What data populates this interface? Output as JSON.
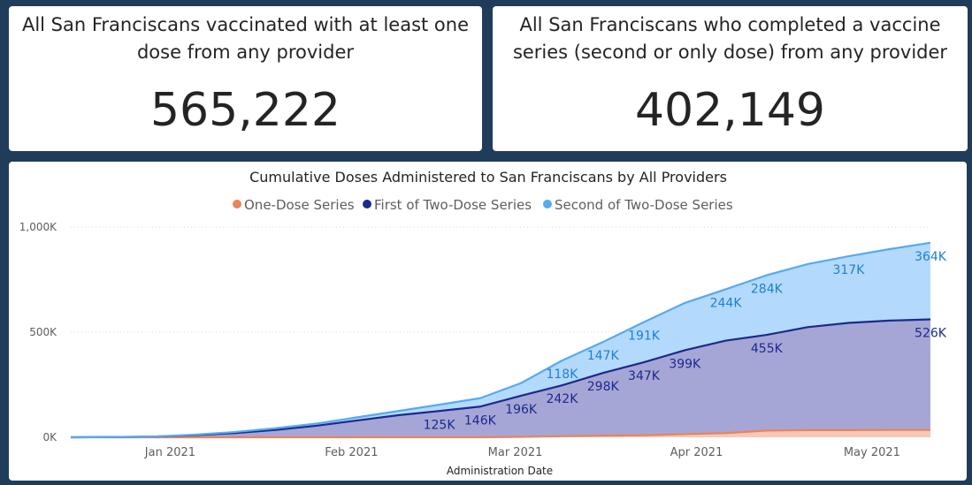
{
  "kpis": [
    {
      "title": "All San Franciscans vaccinated with at least one dose from any provider",
      "value": "565,222"
    },
    {
      "title": "All San Franciscans who completed a vaccine series (second or only dose) from any provider",
      "value": "402,149"
    }
  ],
  "colors": {
    "one_dose": "#e8855a",
    "first_of_two": "#1b2a8c",
    "second_of_two": "#56aaf0",
    "one_dose_fill": "#f7c8b6",
    "first_of_two_fill": "#a6a6d6",
    "second_of_two_fill": "#b3dafd"
  },
  "chart_data": {
    "type": "area",
    "stacked": true,
    "title": "Cumulative Doses Administered to San Franciscans by All Providers",
    "xlabel": "Administration Date",
    "ylabel": "",
    "x_ticks": [
      "Jan 2021",
      "Feb 2021",
      "Mar 2021",
      "Apr 2021",
      "May 2021"
    ],
    "y_ticks": [
      "0K",
      "500K",
      "1,000K"
    ],
    "ylim": [
      0,
      1000000
    ],
    "legend_position": "top-center",
    "grid": true,
    "x": [
      "2020-12-15",
      "2020-12-22",
      "2020-12-29",
      "2021-01-05",
      "2021-01-12",
      "2021-01-19",
      "2021-01-26",
      "2021-02-02",
      "2021-02-09",
      "2021-02-16",
      "2021-02-23",
      "2021-03-02",
      "2021-03-09",
      "2021-03-16",
      "2021-03-23",
      "2021-03-30",
      "2021-04-06",
      "2021-04-13",
      "2021-04-20",
      "2021-04-27",
      "2021-05-04",
      "2021-05-11"
    ],
    "series": [
      {
        "name": "One-Dose Series",
        "key": "one_dose",
        "values": [
          0,
          0,
          0,
          0,
          0,
          0,
          0,
          0,
          0,
          0,
          0,
          2000,
          5000,
          8000,
          10000,
          15000,
          20000,
          32000,
          34000,
          34000,
          35000,
          35000
        ],
        "labels": []
      },
      {
        "name": "First of Two-Dose Series",
        "key": "first_of_two",
        "values": [
          0,
          1000,
          3000,
          10000,
          20000,
          35000,
          55000,
          80000,
          105000,
          125000,
          146000,
          196000,
          242000,
          298000,
          347000,
          399000,
          440000,
          455000,
          490000,
          510000,
          520000,
          526000
        ],
        "labels": [
          {
            "i": 9,
            "text": "125K"
          },
          {
            "i": 10,
            "text": "146K"
          },
          {
            "i": 11,
            "text": "196K"
          },
          {
            "i": 12,
            "text": "242K"
          },
          {
            "i": 13,
            "text": "298K"
          },
          {
            "i": 14,
            "text": "347K"
          },
          {
            "i": 15,
            "text": "399K"
          },
          {
            "i": 17,
            "text": "455K"
          },
          {
            "i": 21,
            "text": "526K"
          }
        ]
      },
      {
        "name": "Second of Two-Dose Series",
        "key": "second_of_two",
        "values": [
          0,
          0,
          0,
          2000,
          5000,
          8000,
          10000,
          15000,
          20000,
          30000,
          40000,
          60000,
          118000,
          147000,
          191000,
          225000,
          244000,
          284000,
          300000,
          317000,
          340000,
          364000
        ],
        "labels": [
          {
            "i": 12,
            "text": "118K"
          },
          {
            "i": 13,
            "text": "147K"
          },
          {
            "i": 14,
            "text": "191K"
          },
          {
            "i": 16,
            "text": "244K"
          },
          {
            "i": 17,
            "text": "284K"
          },
          {
            "i": 19,
            "text": "317K"
          },
          {
            "i": 21,
            "text": "364K"
          }
        ]
      }
    ]
  }
}
